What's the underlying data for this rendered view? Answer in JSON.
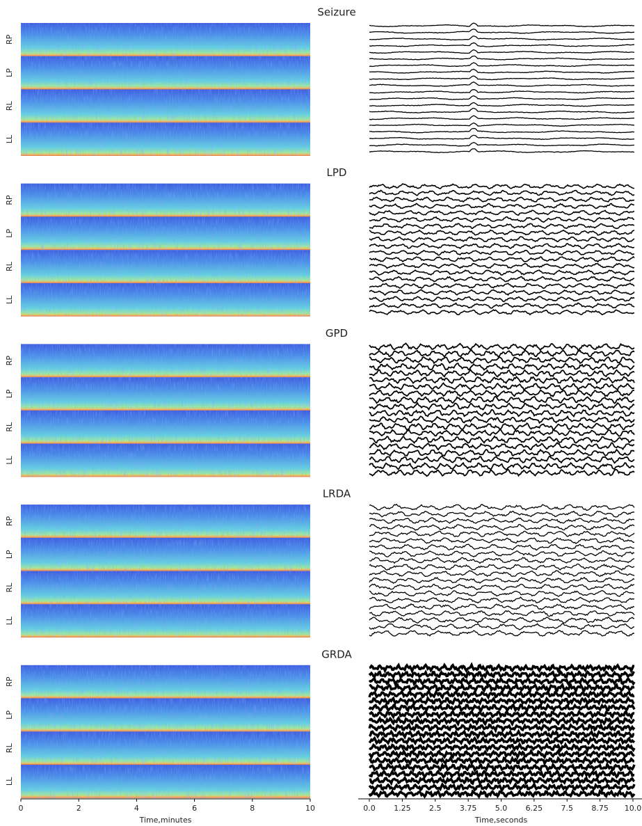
{
  "chart_data": {
    "type": "spectrogram-eeg",
    "rows": [
      {
        "title": "Seizure"
      },
      {
        "title": "LPD"
      },
      {
        "title": "GPD"
      },
      {
        "title": "LRDA"
      },
      {
        "title": "GRDA"
      }
    ],
    "channels": [
      "RP",
      "LP",
      "RL",
      "LL"
    ],
    "spectrogram": {
      "xlabel": "Time,minutes",
      "xlim": [
        0,
        10
      ],
      "xticks": [
        0,
        2,
        4,
        6,
        8,
        10
      ]
    },
    "eeg": {
      "xlabel": "Time,seconds",
      "xlim": [
        0,
        10
      ],
      "xticks": [
        {
          "value": 0,
          "label": "0.0"
        },
        1.25,
        2.5,
        3.75,
        {
          "value": 5,
          "label": "5.0"
        },
        6.25,
        7.5,
        8.75,
        {
          "value": 10,
          "label": "10.0"
        }
      ]
    }
  }
}
